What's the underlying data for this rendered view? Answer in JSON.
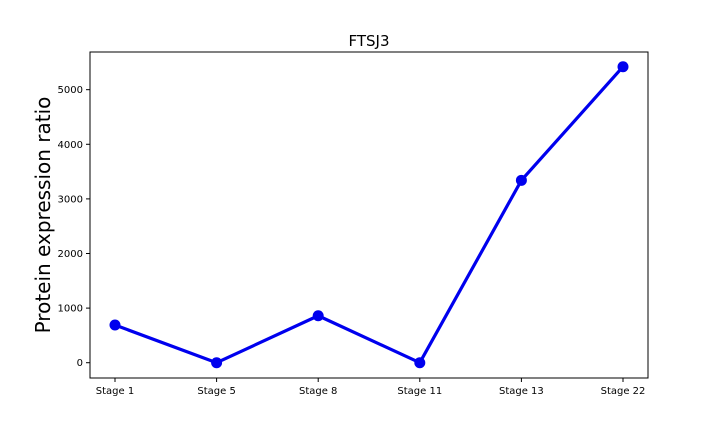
{
  "chart_data": {
    "type": "line",
    "title": "FTSJ3",
    "xlabel": "",
    "ylabel": "Protein expression ratio",
    "categories": [
      "Stage 1",
      "Stage 5",
      "Stage 8",
      "Stage 11",
      "Stage 13",
      "Stage 22"
    ],
    "series": [
      {
        "values": [
          690,
          0,
          860,
          0,
          3340,
          5420
        ]
      }
    ],
    "ylim": [
      -280,
      5690
    ],
    "yticks": [
      0,
      1000,
      2000,
      3000,
      4000,
      5000
    ],
    "grid": false,
    "line_color": "#0000ee",
    "marker": "circle"
  }
}
